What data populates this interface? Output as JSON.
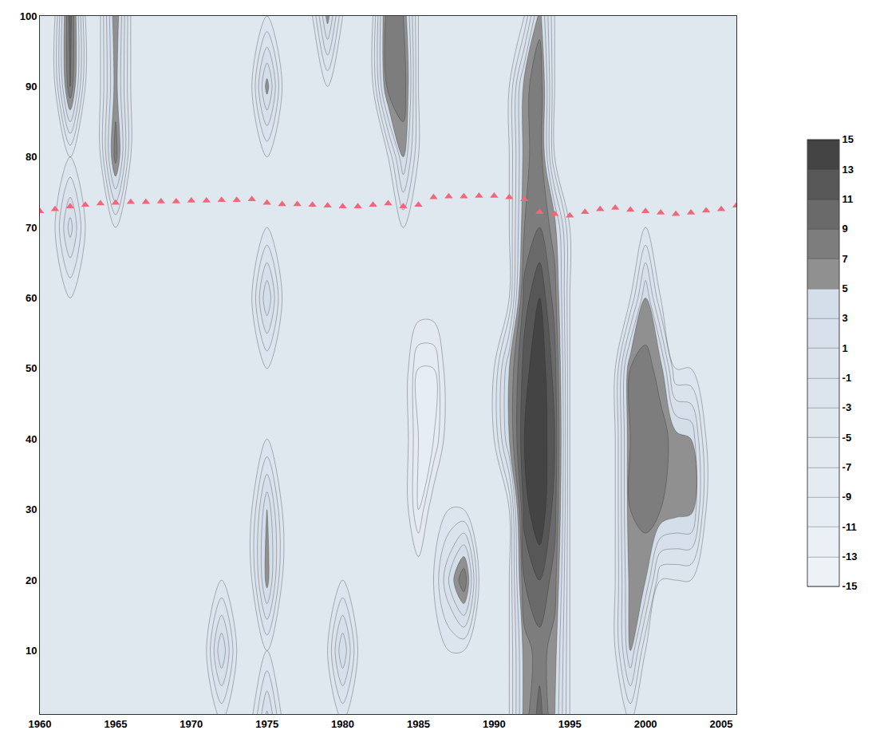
{
  "chart_data": {
    "type": "contour",
    "x": [
      1960,
      1961,
      1962,
      1963,
      1964,
      1965,
      1966,
      1967,
      1968,
      1969,
      1970,
      1971,
      1972,
      1973,
      1974,
      1975,
      1976,
      1977,
      1978,
      1979,
      1980,
      1981,
      1982,
      1983,
      1984,
      1985,
      1986,
      1987,
      1988,
      1989,
      1990,
      1991,
      1992,
      1993,
      1994,
      1995,
      1996,
      1997,
      1998,
      1999,
      2000,
      2001,
      2002,
      2003,
      2004,
      2005,
      2006
    ],
    "y": [
      0,
      10,
      20,
      30,
      40,
      50,
      60,
      70,
      80,
      90,
      100
    ],
    "z": [
      [
        -3,
        -3,
        -3,
        -3,
        -3,
        -3,
        -3,
        -3,
        -3,
        -3,
        -3,
        -3,
        -3,
        -3,
        -3,
        4,
        -3,
        -3,
        -3,
        -3,
        -3,
        -3,
        -3,
        -3,
        -3,
        -3,
        -3,
        -3,
        -3,
        -3,
        -3,
        -3,
        6,
        10,
        5,
        -3,
        -3,
        -3,
        -3,
        -3,
        -3,
        -3,
        -3,
        -3,
        -3,
        -3,
        -3
      ],
      [
        -3,
        -3,
        -3,
        -3,
        -3,
        -3,
        -3,
        -3,
        -3,
        -3,
        -3,
        -3,
        5,
        -3,
        -3,
        -3,
        -3,
        -3,
        -3,
        -3,
        5,
        -3,
        -3,
        -3,
        -3,
        -3,
        -3,
        -3,
        -3,
        -3,
        -3,
        -3,
        6,
        8,
        6,
        -3,
        -3,
        -3,
        -3,
        5,
        -3,
        -3,
        -3,
        -3,
        -3,
        -3,
        -3
      ],
      [
        -3,
        -3,
        -3,
        -3,
        -3,
        -3,
        -3,
        -3,
        -3,
        -3,
        -3,
        -3,
        -3,
        -3,
        -3,
        6,
        -3,
        -3,
        -3,
        -3,
        -3,
        -3,
        -3,
        -3,
        -3,
        -3,
        -3,
        3,
        9,
        -3,
        -3,
        -3,
        9,
        11,
        8,
        -3,
        -3,
        -3,
        -3,
        6,
        5,
        -3,
        -3,
        -3,
        -3,
        -3,
        -3
      ],
      [
        -3,
        -3,
        -3,
        -3,
        -3,
        -3,
        -3,
        -3,
        -3,
        -3,
        -3,
        -3,
        -3,
        -3,
        -3,
        5,
        -3,
        -3,
        -3,
        -3,
        -3,
        -3,
        -3,
        -3,
        -3,
        -9,
        -3,
        -3,
        -3,
        -3,
        -3,
        -3,
        12,
        15,
        10,
        -3,
        -3,
        -3,
        -3,
        7,
        8,
        7,
        6,
        6,
        -3,
        -3,
        -3
      ],
      [
        -3,
        -3,
        -3,
        -3,
        -3,
        -3,
        -3,
        -3,
        -3,
        -3,
        -3,
        -3,
        -3,
        -3,
        -3,
        -3,
        -3,
        -3,
        -3,
        -3,
        -3,
        -3,
        -3,
        -3,
        -3,
        -9,
        -9,
        -3,
        -3,
        -3,
        -3,
        5,
        13,
        15,
        11,
        -3,
        -3,
        -3,
        -3,
        7,
        9,
        8,
        6,
        5,
        -3,
        -3,
        -3
      ],
      [
        -3,
        -3,
        -3,
        -3,
        -3,
        -3,
        -3,
        -3,
        -3,
        -3,
        -3,
        -3,
        -3,
        -3,
        -3,
        -3,
        -3,
        -3,
        -3,
        -3,
        -3,
        -3,
        -3,
        -3,
        -3,
        -9,
        -9,
        -3,
        -3,
        -3,
        -3,
        5,
        12,
        15,
        10,
        -3,
        -3,
        -3,
        -3,
        7,
        8,
        6,
        -3,
        -3,
        -3,
        -3,
        -3
      ],
      [
        -3,
        -3,
        -3,
        -3,
        -3,
        -3,
        -3,
        -3,
        -3,
        -3,
        -3,
        -3,
        -3,
        -3,
        -3,
        5,
        -3,
        -3,
        -3,
        -3,
        -3,
        -3,
        -3,
        -3,
        -3,
        -3,
        -3,
        -3,
        -3,
        -3,
        -3,
        -3,
        10,
        13,
        8,
        -3,
        -3,
        -3,
        -3,
        -3,
        5,
        -3,
        -3,
        -3,
        -3,
        -3,
        -3
      ],
      [
        -3,
        -3,
        4,
        -3,
        -3,
        -3,
        -3,
        -3,
        -3,
        -3,
        -3,
        -3,
        -3,
        -3,
        -3,
        -3,
        -3,
        -3,
        -3,
        -3,
        -3,
        -3,
        -3,
        -3,
        -3,
        -3,
        -3,
        -3,
        -3,
        -3,
        -3,
        -3,
        7,
        9,
        6,
        -3,
        -3,
        -3,
        -3,
        -3,
        -3,
        -3,
        -3,
        -3,
        -3,
        -3,
        -3
      ],
      [
        -3,
        -3,
        -3,
        -3,
        -3,
        8,
        -3,
        -3,
        -3,
        -3,
        -3,
        -3,
        -3,
        -3,
        -3,
        -3,
        -3,
        -3,
        -3,
        -3,
        -3,
        -3,
        -3,
        -3,
        5,
        -3,
        -3,
        -3,
        -3,
        -3,
        -3,
        -3,
        6,
        9,
        -3,
        -3,
        -3,
        -3,
        -3,
        -3,
        -3,
        -3,
        -3,
        -3,
        -3,
        -3,
        -3
      ],
      [
        -3,
        -3,
        9,
        -3,
        -3,
        6,
        -3,
        -3,
        -3,
        -3,
        -3,
        -3,
        -3,
        -3,
        -3,
        6,
        -3,
        -3,
        -3,
        -3,
        -3,
        -3,
        -3,
        8,
        9,
        -3,
        -3,
        -3,
        -3,
        -3,
        -3,
        -3,
        6,
        9,
        -3,
        -3,
        -3,
        -3,
        -3,
        -3,
        -3,
        -3,
        -3,
        -3,
        -3,
        -3,
        -3
      ],
      [
        -3,
        -3,
        10,
        -3,
        -3,
        7,
        -3,
        -3,
        -3,
        -3,
        -3,
        -3,
        -3,
        -3,
        -3,
        -3,
        -3,
        -3,
        -3,
        6,
        -3,
        -3,
        -3,
        9,
        7,
        -3,
        -3,
        -3,
        -3,
        -3,
        -3,
        -3,
        -3,
        6,
        -3,
        -3,
        -3,
        -3,
        -3,
        -3,
        -3,
        -3,
        -3,
        -3,
        -3,
        -3,
        -3
      ]
    ],
    "color_range": [
      -15,
      15
    ],
    "color_ticks": [
      15,
      13,
      11,
      9,
      7,
      5,
      3,
      1,
      -1,
      -3,
      -5,
      -7,
      -9,
      -11,
      -13,
      -15
    ],
    "markers": {
      "type": "scatter",
      "marker": "triangle-up",
      "color": "#f2667a",
      "x": [
        1960,
        1961,
        1962,
        1963,
        1964,
        1965,
        1966,
        1967,
        1968,
        1969,
        1970,
        1971,
        1972,
        1973,
        1974,
        1975,
        1976,
        1977,
        1978,
        1979,
        1980,
        1981,
        1982,
        1983,
        1984,
        1985,
        1986,
        1987,
        1988,
        1989,
        1990,
        1991,
        1992,
        1993,
        1994,
        1995,
        1996,
        1997,
        1998,
        1999,
        2000,
        2001,
        2002,
        2003,
        2004,
        2005,
        2006
      ],
      "y": [
        72.3,
        72.6,
        73,
        73.2,
        73.4,
        73.5,
        73.6,
        73.6,
        73.7,
        73.7,
        73.8,
        73.8,
        73.9,
        73.9,
        74,
        73.5,
        73.3,
        73.3,
        73.2,
        73.1,
        73,
        73,
        73.2,
        73.4,
        73,
        73.2,
        74.3,
        74.4,
        74.4,
        74.5,
        74.5,
        74.3,
        74,
        72.2,
        71.9,
        71.7,
        72.2,
        72.6,
        72.8,
        72.5,
        72.3,
        72.1,
        71.9,
        72.1,
        72.4,
        72.6,
        73.1
      ]
    },
    "xlim": [
      1960,
      2006
    ],
    "ylim": [
      1,
      100
    ],
    "xticks": [
      1960,
      1965,
      1970,
      1975,
      1980,
      1985,
      1990,
      1995,
      2000,
      2005
    ],
    "yticks": [
      10,
      20,
      30,
      40,
      50,
      60,
      70,
      80,
      90,
      100
    ],
    "grid": true
  }
}
